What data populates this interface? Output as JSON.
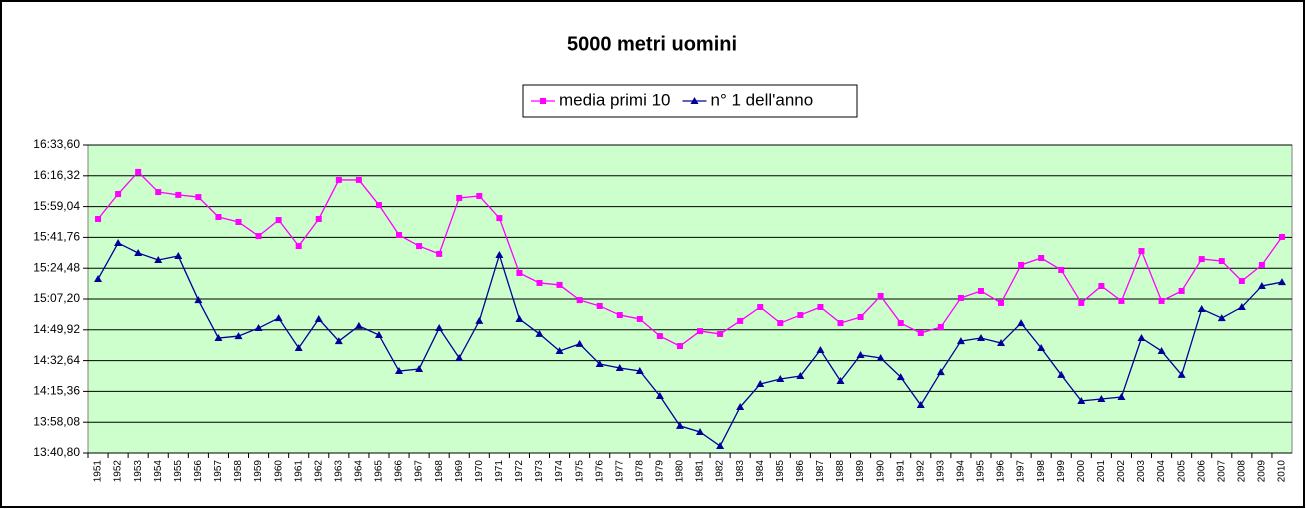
{
  "chart_data": {
    "type": "line",
    "title": "5000 metri uomini",
    "legend": "top",
    "grid": true,
    "plot_background": "#ccffcc",
    "categories": [
      "1951",
      "1952",
      "1953",
      "1954",
      "1955",
      "1956",
      "1957",
      "1958",
      "1959",
      "1960",
      "1961",
      "1962",
      "1963",
      "1964",
      "1965",
      "1966",
      "1967",
      "1968",
      "1969",
      "1970",
      "1971",
      "1972",
      "1973",
      "1974",
      "1975",
      "1976",
      "1977",
      "1978",
      "1979",
      "1980",
      "1981",
      "1982",
      "1983",
      "1984",
      "1985",
      "1986",
      "1987",
      "1988",
      "1989",
      "1990",
      "1991",
      "1992",
      "1993",
      "1994",
      "1995",
      "1996",
      "1997",
      "1998",
      "1999",
      "2000",
      "2001",
      "2002",
      "2003",
      "2004",
      "2005",
      "2006",
      "2007",
      "2008",
      "2009",
      "2010"
    ],
    "ylim": [
      820.8,
      993.6
    ],
    "yticks": [
      {
        "value": 820.8,
        "label": "13:40,80"
      },
      {
        "value": 838.08,
        "label": "13:58,08"
      },
      {
        "value": 855.36,
        "label": "14:15,36"
      },
      {
        "value": 872.64,
        "label": "14:32,64"
      },
      {
        "value": 889.92,
        "label": "14:49,92"
      },
      {
        "value": 907.2,
        "label": "15:07,20"
      },
      {
        "value": 924.48,
        "label": "15:24,48"
      },
      {
        "value": 941.76,
        "label": "15:41,76"
      },
      {
        "value": 959.04,
        "label": "15:59,04"
      },
      {
        "value": 976.32,
        "label": "16:16,32"
      },
      {
        "value": 993.6,
        "label": "16:33,60"
      }
    ],
    "series": [
      {
        "name": "media primi 10",
        "color": "#ff00ff",
        "marker": "square",
        "values": [
          952.1,
          966.1,
          978.5,
          967.2,
          965.6,
          964.4,
          953.2,
          950.4,
          942.5,
          951.5,
          936.9,
          952.1,
          974.0,
          974.0,
          959.9,
          943.1,
          936.9,
          932.5,
          963.9,
          965.0,
          952.6,
          921.8,
          916.2,
          915.1,
          906.6,
          903.3,
          898.2,
          896.0,
          886.4,
          880.8,
          889.2,
          887.6,
          894.9,
          902.7,
          893.7,
          898.2,
          902.7,
          893.7,
          897.1,
          908.9,
          893.7,
          888.1,
          891.5,
          907.8,
          911.7,
          905.0,
          926.3,
          930.2,
          923.5,
          905.0,
          914.5,
          906.1,
          934.1,
          906.1,
          911.7,
          929.6,
          928.5,
          917.3,
          926.3,
          942.0
        ]
      },
      {
        "name": "n° 1 dell'anno",
        "color": "#000099",
        "marker": "triangle",
        "values": [
          918.4,
          938.6,
          933.0,
          929.1,
          931.3,
          906.6,
          885.3,
          886.4,
          890.9,
          896.5,
          879.7,
          896.0,
          883.6,
          892.1,
          887.0,
          866.8,
          867.9,
          890.9,
          874.1,
          894.9,
          931.9,
          896.0,
          887.6,
          878.0,
          882.0,
          870.7,
          868.5,
          866.8,
          852.8,
          836.0,
          832.6,
          824.7,
          846.6,
          859.5,
          862.3,
          864.0,
          878.6,
          861.2,
          875.8,
          874.1,
          863.4,
          847.7,
          866.2,
          883.6,
          885.3,
          882.5,
          893.7,
          879.7,
          864.6,
          850.0,
          851.1,
          852.2,
          885.3,
          878.0,
          864.6,
          901.6,
          896.5,
          902.7,
          914.5,
          916.7
        ]
      }
    ]
  }
}
